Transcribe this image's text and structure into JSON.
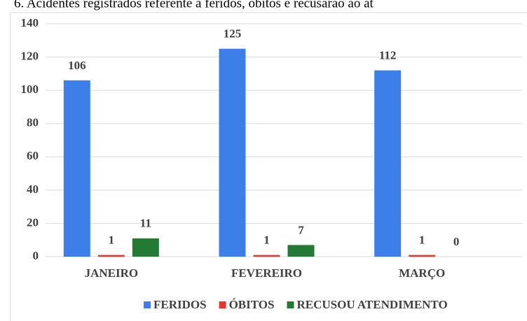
{
  "chart_data": {
    "type": "bar",
    "title": "6. Acidentes registrados referente a feridos, óbitos e recusarão ao at",
    "categories": [
      "JANEIRO",
      "FEVEREIRO",
      "MARÇO"
    ],
    "series": [
      {
        "name": "FERIDOS",
        "color": "#3d7fe8",
        "values": [
          106,
          125,
          112
        ]
      },
      {
        "name": "ÓBITOS",
        "color": "#e8362c",
        "values": [
          1,
          1,
          1
        ]
      },
      {
        "name": "RECUSOU ATENDIMENTO",
        "color": "#237a34",
        "values": [
          11,
          7,
          0
        ]
      }
    ],
    "ylim": [
      0,
      140
    ],
    "yticks": [
      0,
      20,
      40,
      60,
      80,
      100,
      120,
      140
    ],
    "grid": true,
    "legend": "bottom"
  }
}
